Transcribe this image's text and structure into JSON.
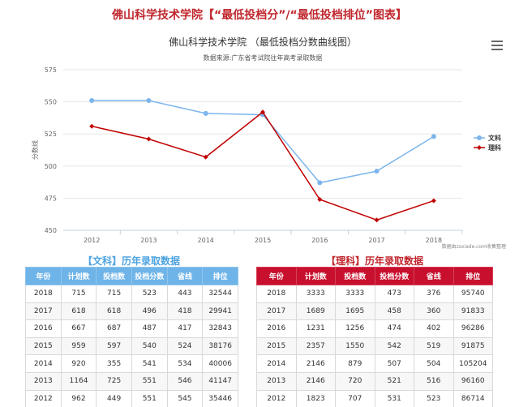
{
  "page_title": "佛山科学技术学院【“最低投档分”/“最低投档排位”图表】",
  "chart": {
    "title": "佛山科学技术学院 （最低投档分数曲线图）",
    "subtitle": "数据来源:广东省考试院往年高考录取数据",
    "credit": "数据由zsxiade.com收集整理"
  },
  "chart_data": {
    "type": "line",
    "categories": [
      "2012",
      "2013",
      "2014",
      "2015",
      "2016",
      "2017",
      "2018"
    ],
    "ylabel": "分数线",
    "ylim": [
      450,
      575
    ],
    "yticks": [
      "450",
      "475",
      "500",
      "525",
      "550",
      "575"
    ],
    "grid": true,
    "legend_position": "right",
    "series": [
      {
        "name": "文科",
        "color": "#7cb5ec",
        "values": [
          551,
          551,
          541,
          540,
          487,
          496,
          523
        ]
      },
      {
        "name": "理科",
        "color": "#c00000",
        "values": [
          531,
          521,
          507,
          542,
          474,
          458,
          473
        ]
      }
    ]
  },
  "tables": {
    "wenke": {
      "title": "【文科】历年录取数据",
      "headers": [
        "年份",
        "计划数",
        "投档数",
        "投档分数",
        "省线",
        "排位"
      ],
      "rows": [
        [
          "2018",
          "715",
          "715",
          "523",
          "443",
          "32544"
        ],
        [
          "2017",
          "618",
          "618",
          "496",
          "418",
          "29941"
        ],
        [
          "2016",
          "667",
          "687",
          "487",
          "417",
          "32843"
        ],
        [
          "2015",
          "959",
          "597",
          "540",
          "524",
          "38176"
        ],
        [
          "2014",
          "920",
          "355",
          "541",
          "534",
          "40006"
        ],
        [
          "2013",
          "1164",
          "725",
          "551",
          "546",
          "41147"
        ],
        [
          "2012",
          "962",
          "449",
          "551",
          "545",
          "35446"
        ]
      ]
    },
    "like": {
      "title": "【理科】历年录取数据",
      "headers": [
        "年份",
        "计划数",
        "投档数",
        "投档分数",
        "省线",
        "排位"
      ],
      "rows": [
        [
          "2018",
          "3333",
          "3333",
          "473",
          "376",
          "95740"
        ],
        [
          "2017",
          "1689",
          "1695",
          "458",
          "360",
          "91833"
        ],
        [
          "2016",
          "1231",
          "1256",
          "474",
          "402",
          "96286"
        ],
        [
          "2015",
          "2357",
          "1550",
          "542",
          "519",
          "91875"
        ],
        [
          "2014",
          "2146",
          "879",
          "507",
          "504",
          "105204"
        ],
        [
          "2013",
          "2146",
          "720",
          "521",
          "516",
          "96160"
        ],
        [
          "2012",
          "1823",
          "707",
          "531",
          "523",
          "86714"
        ]
      ]
    }
  }
}
